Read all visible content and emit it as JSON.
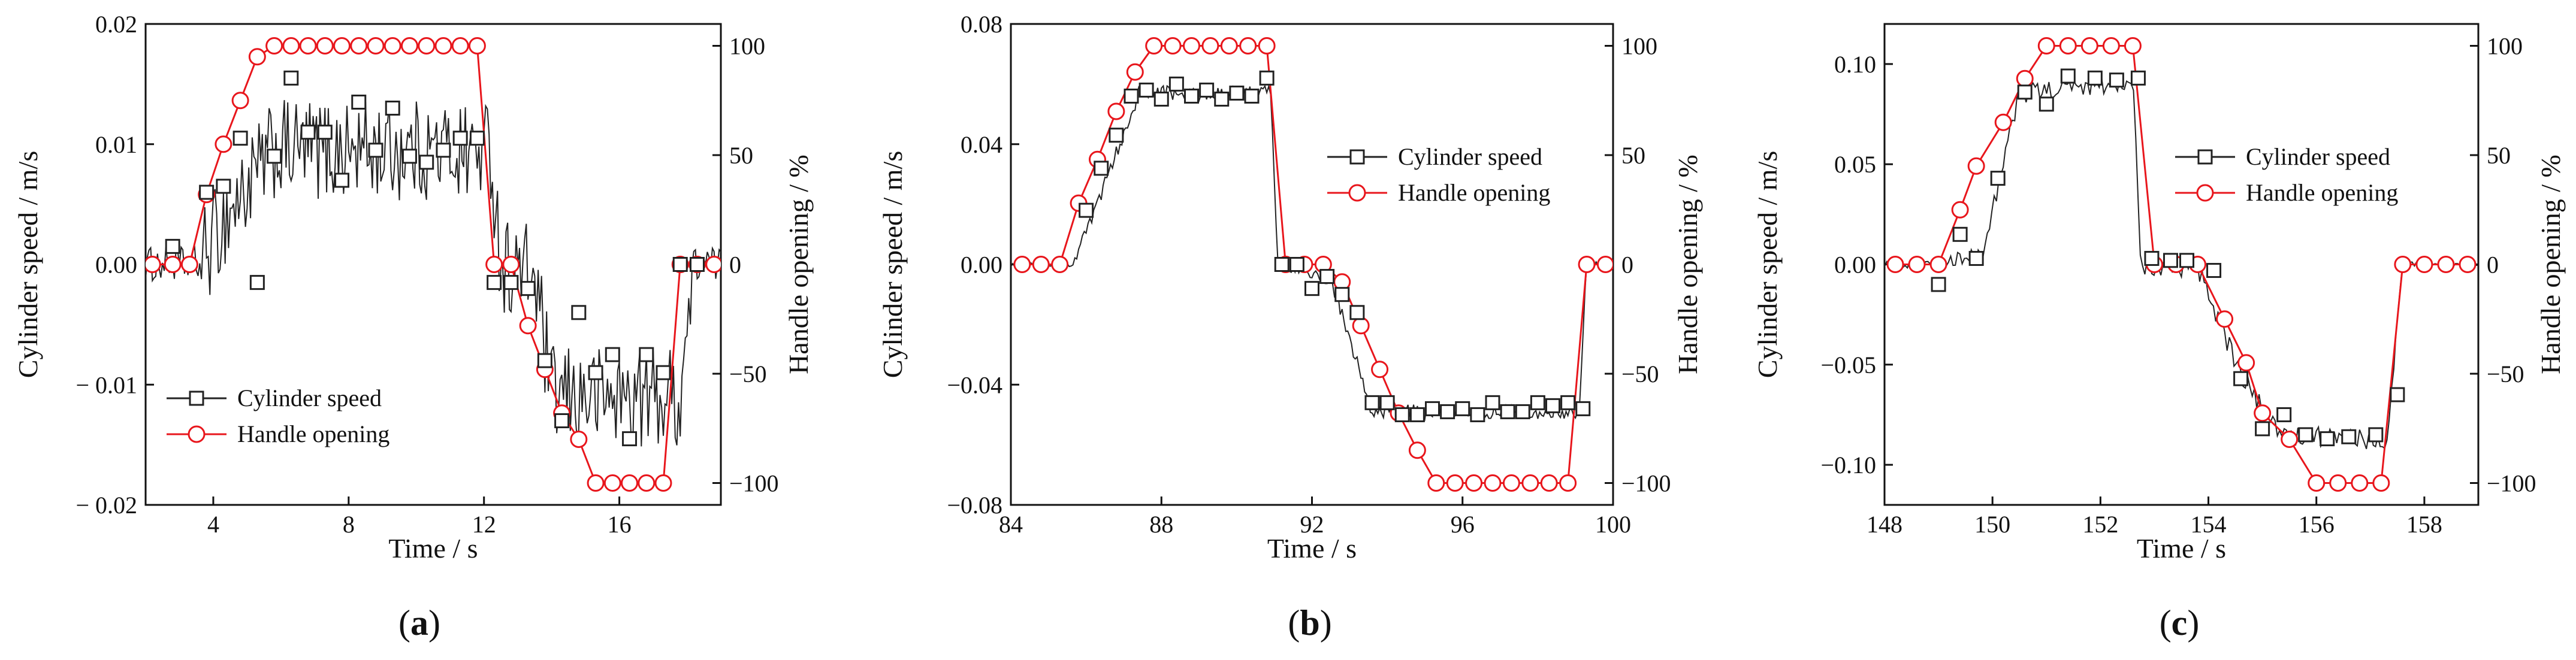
{
  "colors": {
    "speed": "#222222",
    "handle": "#e8161c",
    "axis": "#111111"
  },
  "chart_data": [
    {
      "type": "line",
      "panel_label": "(a)",
      "panel_letter": "a",
      "xlabel": "Time / s",
      "ylabel_left": "Cylinder speed  / m/s",
      "ylabel_right": "Handle opening  / %",
      "xlim": [
        2,
        19
      ],
      "ylim_left": [
        -0.02,
        0.02
      ],
      "ylim_right": [
        -110,
        110
      ],
      "x_ticks": [
        4,
        8,
        12,
        16
      ],
      "x_tick_labels": [
        "4",
        "8",
        "12",
        "16"
      ],
      "y_left_ticks": [
        -0.02,
        -0.01,
        0.0,
        0.01,
        0.02
      ],
      "y_left_tick_labels": [
        "− 0.02",
        "− 0.01",
        "0.00",
        "0.01",
        "0.02"
      ],
      "y_right_ticks": [
        -100,
        -50,
        0,
        50,
        100
      ],
      "y_right_tick_labels": [
        "−100",
        "−50",
        "0",
        "50",
        "100"
      ],
      "legend": [
        "Cylinder speed",
        "Handle opening"
      ],
      "legend_position": "lower-left",
      "noise": 0.0042,
      "noise_points": 340,
      "speed_profile": [
        [
          2,
          0
        ],
        [
          3.6,
          0
        ],
        [
          4.4,
          0.004
        ],
        [
          5.8,
          0.0095
        ],
        [
          12.2,
          0.0095
        ],
        [
          12.5,
          0
        ],
        [
          13.5,
          -0.001
        ],
        [
          14.0,
          -0.011
        ],
        [
          17.8,
          -0.011
        ],
        [
          18.2,
          0
        ],
        [
          19,
          0
        ]
      ],
      "series": [
        {
          "name": "Cylinder speed",
          "x": [
            2.8,
            3.8,
            4.3,
            4.8,
            5.3,
            5.8,
            6.3,
            6.8,
            7.3,
            7.8,
            8.3,
            8.8,
            9.3,
            9.8,
            10.3,
            10.8,
            11.3,
            11.8,
            12.3,
            12.8,
            13.3,
            13.8,
            14.3,
            14.8,
            15.3,
            15.8,
            16.3,
            16.8,
            17.3,
            17.8,
            18.3
          ],
          "values": [
            0.0015,
            0.006,
            0.0065,
            0.0105,
            -0.0015,
            0.009,
            0.0155,
            0.011,
            0.011,
            0.007,
            0.0135,
            0.0095,
            0.013,
            0.009,
            0.0085,
            0.0095,
            0.0105,
            0.0105,
            -0.0015,
            -0.0015,
            -0.002,
            -0.008,
            -0.013,
            -0.004,
            -0.009,
            -0.0075,
            -0.0145,
            -0.0075,
            -0.009,
            0.0,
            0.0
          ]
        },
        {
          "name": "Handle opening",
          "x": [
            2.2,
            2.8,
            3.3,
            3.8,
            4.3,
            4.8,
            5.3,
            5.8,
            6.3,
            6.8,
            7.3,
            7.8,
            8.3,
            8.8,
            9.3,
            9.8,
            10.3,
            10.8,
            11.3,
            11.8,
            12.3,
            12.8,
            13.3,
            13.8,
            14.3,
            14.8,
            15.3,
            15.8,
            16.3,
            16.8,
            17.3,
            17.8,
            18.3,
            18.8
          ],
          "values": [
            0,
            0,
            0,
            32,
            55,
            75,
            95,
            100,
            100,
            100,
            100,
            100,
            100,
            100,
            100,
            100,
            100,
            100,
            100,
            100,
            0,
            0,
            -28,
            -48,
            -68,
            -80,
            -100,
            -100,
            -100,
            -100,
            -100,
            0,
            0,
            0
          ],
          "axis": "right"
        }
      ]
    },
    {
      "type": "line",
      "panel_label": "(b)",
      "panel_letter": "b",
      "xlabel": "Time / s",
      "ylabel_left": "Cylinder speed  / m/s",
      "ylabel_right": "Handle opening  / %",
      "xlim": [
        84,
        100
      ],
      "ylim_left": [
        -0.08,
        0.08
      ],
      "ylim_right": [
        -110,
        110
      ],
      "x_ticks": [
        84,
        88,
        92,
        96,
        100
      ],
      "x_tick_labels": [
        "84",
        "88",
        "92",
        "96",
        "100"
      ],
      "y_left_ticks": [
        -0.08,
        -0.04,
        0.0,
        0.04,
        0.08
      ],
      "y_left_tick_labels": [
        "−0.08",
        "−0.04",
        "0.00",
        "0.04",
        "0.08"
      ],
      "y_right_ticks": [
        -100,
        -50,
        0,
        50,
        100
      ],
      "y_right_tick_labels": [
        "−100",
        "−50",
        "0",
        "50",
        "100"
      ],
      "legend": [
        "Cylinder speed",
        "Handle opening"
      ],
      "legend_position": "center-right",
      "noise": 0.0025,
      "noise_points": 320,
      "speed_profile": [
        [
          84,
          0
        ],
        [
          85.6,
          0
        ],
        [
          86.0,
          0.01
        ],
        [
          87.4,
          0.057
        ],
        [
          90.9,
          0.057
        ],
        [
          91.1,
          0
        ],
        [
          92.5,
          -0.005
        ],
        [
          93.6,
          -0.049
        ],
        [
          99.1,
          -0.049
        ],
        [
          99.3,
          0
        ],
        [
          100,
          0
        ]
      ],
      "series": [
        {
          "name": "Cylinder speed",
          "x": [
            86.0,
            86.4,
            86.8,
            87.2,
            87.6,
            88.0,
            88.4,
            88.8,
            89.2,
            89.6,
            90.0,
            90.4,
            90.8,
            91.2,
            91.6,
            92.0,
            92.4,
            92.8,
            93.2,
            93.6,
            94.0,
            94.4,
            94.8,
            95.2,
            95.6,
            96.0,
            96.4,
            96.8,
            97.2,
            97.6,
            98.0,
            98.4,
            98.8,
            99.2
          ],
          "values": [
            0.018,
            0.032,
            0.043,
            0.056,
            0.058,
            0.055,
            0.06,
            0.056,
            0.058,
            0.055,
            0.057,
            0.056,
            0.062,
            0.0,
            0.0,
            -0.008,
            -0.004,
            -0.01,
            -0.016,
            -0.046,
            -0.046,
            -0.05,
            -0.05,
            -0.048,
            -0.049,
            -0.048,
            -0.05,
            -0.046,
            -0.049,
            -0.049,
            -0.046,
            -0.047,
            -0.046,
            -0.048
          ]
        },
        {
          "name": "Handle opening",
          "x": [
            84.3,
            84.8,
            85.3,
            85.8,
            86.3,
            86.8,
            87.3,
            87.8,
            88.3,
            88.8,
            89.3,
            89.8,
            90.3,
            90.8,
            91.3,
            91.8,
            92.3,
            92.8,
            93.3,
            93.8,
            94.3,
            94.8,
            95.3,
            95.8,
            96.3,
            96.8,
            97.3,
            97.8,
            98.3,
            98.8,
            99.3,
            99.8
          ],
          "values": [
            0,
            0,
            0,
            28,
            48,
            70,
            88,
            100,
            100,
            100,
            100,
            100,
            100,
            100,
            0,
            0,
            0,
            -8,
            -28,
            -48,
            -68,
            -85,
            -100,
            -100,
            -100,
            -100,
            -100,
            -100,
            -100,
            -100,
            0,
            0
          ],
          "axis": "right"
        }
      ]
    },
    {
      "type": "line",
      "panel_label": "(c)",
      "panel_letter": "c",
      "xlabel": "Time / s",
      "ylabel_left": "Cylinder speed  / m/s",
      "ylabel_right": "Handle opening  / %",
      "xlim": [
        148,
        159
      ],
      "ylim_left": [
        -0.12,
        0.12
      ],
      "ylim_right": [
        -110,
        110
      ],
      "x_ticks": [
        148,
        150,
        152,
        154,
        156,
        158
      ],
      "x_tick_labels": [
        "148",
        "150",
        "152",
        "154",
        "156",
        "158"
      ],
      "y_left_ticks": [
        -0.1,
        -0.05,
        0.0,
        0.05,
        0.1
      ],
      "y_left_tick_labels": [
        "−0.10",
        "−0.05",
        "0.00",
        "0.05",
        "0.10"
      ],
      "y_right_ticks": [
        -100,
        -50,
        0,
        50,
        100
      ],
      "y_right_tick_labels": [
        "−100",
        "−50",
        "0",
        "50",
        "100"
      ],
      "legend": [
        "Cylinder speed",
        "Handle opening"
      ],
      "legend_position": "top-center",
      "noise": 0.005,
      "noise_points": 260,
      "speed_profile": [
        [
          148,
          0
        ],
        [
          149.2,
          0
        ],
        [
          149.8,
          0.005
        ],
        [
          150.5,
          0.085
        ],
        [
          152.6,
          0.092
        ],
        [
          152.75,
          0
        ],
        [
          153.8,
          -0.002
        ],
        [
          154.6,
          -0.055
        ],
        [
          155.3,
          -0.085
        ],
        [
          157.3,
          -0.088
        ],
        [
          157.6,
          0
        ],
        [
          159,
          0
        ]
      ],
      "series": [
        {
          "name": "Cylinder speed",
          "x": [
            149.0,
            149.4,
            149.7,
            150.1,
            150.6,
            151.0,
            151.4,
            151.9,
            152.3,
            152.7,
            152.95,
            153.3,
            153.6,
            154.1,
            154.6,
            155.0,
            155.4,
            155.8,
            156.2,
            156.6,
            157.1,
            157.5
          ],
          "values": [
            -0.01,
            0.015,
            0.003,
            0.043,
            0.086,
            0.08,
            0.094,
            0.093,
            0.092,
            0.093,
            0.003,
            0.002,
            0.002,
            -0.003,
            -0.057,
            -0.082,
            -0.075,
            -0.085,
            -0.087,
            -0.086,
            -0.085,
            -0.065
          ]
        },
        {
          "name": "Handle opening",
          "x": [
            148.2,
            148.6,
            149.0,
            149.4,
            149.7,
            150.2,
            150.6,
            151.0,
            151.4,
            151.8,
            152.2,
            152.6,
            153.0,
            153.4,
            153.8,
            154.3,
            154.7,
            155.0,
            155.5,
            156.0,
            156.4,
            156.8,
            157.2,
            157.6,
            158.0,
            158.4,
            158.8
          ],
          "values": [
            0,
            0,
            0,
            25,
            45,
            65,
            85,
            100,
            100,
            100,
            100,
            100,
            0,
            0,
            0,
            -25,
            -45,
            -68,
            -80,
            -100,
            -100,
            -100,
            -100,
            0,
            0,
            0,
            0
          ],
          "axis": "right"
        }
      ]
    }
  ]
}
